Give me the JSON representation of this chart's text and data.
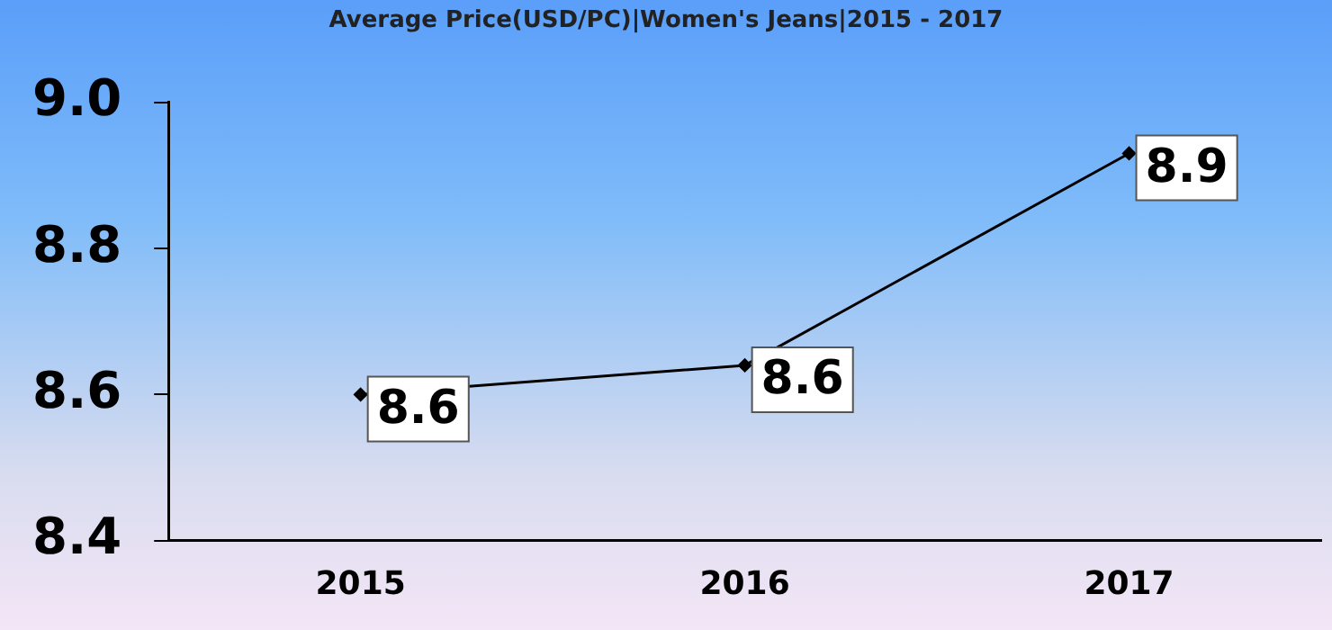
{
  "chart_data": {
    "type": "line",
    "title": "Average Price(USD/PC)|Women's Jeans|2015 - 2017",
    "categories": [
      "2015",
      "2016",
      "2017"
    ],
    "series": [
      {
        "color": "#000000",
        "values": [
          8.6,
          8.64,
          8.93
        ],
        "value_labels": [
          "8.6",
          "8.6",
          "8.9"
        ]
      }
    ],
    "ylim": [
      8.4,
      9.0
    ],
    "yticks": [
      {
        "value": 8.4,
        "label": "8.4"
      },
      {
        "value": 8.6,
        "label": "8.6"
      },
      {
        "value": 8.8,
        "label": "8.8"
      },
      {
        "value": 9.0,
        "label": "9.0"
      }
    ],
    "grid": false,
    "legend": false,
    "marker": "diamond"
  }
}
